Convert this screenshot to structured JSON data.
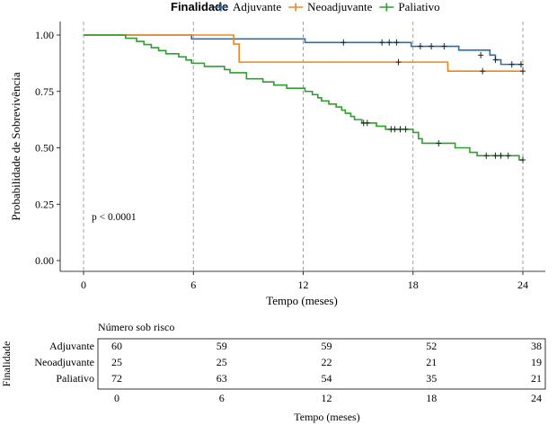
{
  "legend": {
    "title": "Finalidade",
    "items": [
      {
        "label": "Adjuvante",
        "color": "#2c6fa6"
      },
      {
        "label": "Neoadjuvante",
        "color": "#f0861a"
      },
      {
        "label": "Paliativo",
        "color": "#2f9e2f"
      }
    ]
  },
  "chart_data": [
    {
      "type": "line",
      "subtype": "kaplan-meier-step",
      "xlabel": "Tempo (meses)",
      "ylabel": "Probabilidade de Sobrevivência",
      "xlim": [
        0,
        24
      ],
      "ylim": [
        0,
        1
      ],
      "xticks": [
        "0",
        "6",
        "12",
        "18",
        "24"
      ],
      "xtick_values": [
        0,
        6,
        12,
        18,
        24
      ],
      "yticks": [
        "0.00",
        "0.25",
        "0.50",
        "0.75",
        "1.00"
      ],
      "ytick_values": [
        0,
        0.25,
        0.5,
        0.75,
        1.0
      ],
      "vertical_reference_lines": [
        0,
        6,
        12,
        18,
        24
      ],
      "annotation": "p < 0.0001",
      "legend_position": "top",
      "series": [
        {
          "name": "Adjuvante",
          "color": "#2c6fa6",
          "steps": [
            [
              0,
              1.0
            ],
            [
              5.9,
              0.983
            ],
            [
              12.1,
              0.967
            ],
            [
              17.9,
              0.95
            ],
            [
              20.5,
              0.933
            ],
            [
              22.2,
              0.911
            ],
            [
              22.5,
              0.89
            ],
            [
              22.8,
              0.87
            ],
            [
              24,
              0.87
            ]
          ],
          "censored": [
            [
              14.2,
              0.967
            ],
            [
              16.3,
              0.967
            ],
            [
              16.7,
              0.967
            ],
            [
              17.1,
              0.967
            ],
            [
              18.4,
              0.95
            ],
            [
              19.0,
              0.95
            ],
            [
              19.7,
              0.95
            ],
            [
              21.7,
              0.911
            ],
            [
              22.5,
              0.89
            ],
            [
              23.4,
              0.87
            ],
            [
              23.9,
              0.87
            ]
          ]
        },
        {
          "name": "Neoadjuvante",
          "color": "#f0861a",
          "steps": [
            [
              0,
              1.0
            ],
            [
              8.2,
              0.96
            ],
            [
              8.5,
              0.88
            ],
            [
              19.9,
              0.84
            ],
            [
              24,
              0.84
            ]
          ],
          "censored": [
            [
              17.2,
              0.88
            ],
            [
              21.8,
              0.84
            ],
            [
              24.0,
              0.84
            ]
          ]
        },
        {
          "name": "Paliativo",
          "color": "#2f9e2f",
          "steps": [
            [
              0,
              1.0
            ],
            [
              2.3,
              0.986
            ],
            [
              2.9,
              0.972
            ],
            [
              3.3,
              0.958
            ],
            [
              3.7,
              0.944
            ],
            [
              4.1,
              0.931
            ],
            [
              4.5,
              0.917
            ],
            [
              5.2,
              0.903
            ],
            [
              5.6,
              0.889
            ],
            [
              5.9,
              0.875
            ],
            [
              6.6,
              0.861
            ],
            [
              7.7,
              0.847
            ],
            [
              8.0,
              0.833
            ],
            [
              8.9,
              0.806
            ],
            [
              9.8,
              0.792
            ],
            [
              10.4,
              0.778
            ],
            [
              11.1,
              0.764
            ],
            [
              12.1,
              0.75
            ],
            [
              12.5,
              0.736
            ],
            [
              12.8,
              0.722
            ],
            [
              13.0,
              0.708
            ],
            [
              13.4,
              0.694
            ],
            [
              13.8,
              0.681
            ],
            [
              14.1,
              0.667
            ],
            [
              14.3,
              0.653
            ],
            [
              14.6,
              0.639
            ],
            [
              14.8,
              0.625
            ],
            [
              15.2,
              0.61
            ],
            [
              16.0,
              0.596
            ],
            [
              16.5,
              0.582
            ],
            [
              18.0,
              0.568
            ],
            [
              18.3,
              0.54
            ],
            [
              18.5,
              0.52
            ],
            [
              20.3,
              0.5
            ],
            [
              21.1,
              0.48
            ],
            [
              21.5,
              0.465
            ],
            [
              23.8,
              0.446
            ],
            [
              24,
              0.446
            ]
          ],
          "censored": [
            [
              15.3,
              0.61
            ],
            [
              15.5,
              0.61
            ],
            [
              16.8,
              0.582
            ],
            [
              17.0,
              0.582
            ],
            [
              17.3,
              0.582
            ],
            [
              17.6,
              0.582
            ],
            [
              19.4,
              0.52
            ],
            [
              22.0,
              0.465
            ],
            [
              22.5,
              0.465
            ],
            [
              22.8,
              0.465
            ],
            [
              23.2,
              0.465
            ],
            [
              24.0,
              0.446
            ]
          ]
        }
      ]
    },
    {
      "type": "table",
      "title": "Número sob risco",
      "xlabel": "Tempo (meses)",
      "ylabel": "Finalidade",
      "xticks": [
        "0",
        "6",
        "12",
        "18",
        "24"
      ],
      "xtick_values": [
        0,
        6,
        12,
        18,
        24
      ],
      "rows": [
        {
          "name": "Adjuvante",
          "values": [
            "60",
            "59",
            "59",
            "52",
            "38"
          ]
        },
        {
          "name": "Neoadjuvante",
          "values": [
            "25",
            "25",
            "22",
            "21",
            "19"
          ]
        },
        {
          "name": "Paliativo",
          "values": [
            "72",
            "63",
            "54",
            "35",
            "21"
          ]
        }
      ]
    }
  ]
}
